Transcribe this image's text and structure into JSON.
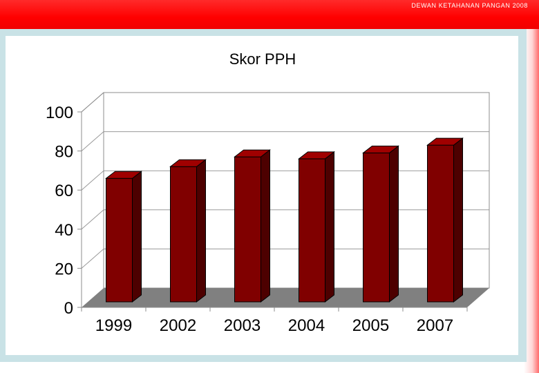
{
  "header": {
    "org_text": "DEWAN KETAHANAN PANGAN 2008"
  },
  "colors": {
    "band": "#ff0000",
    "bar_front": "#800000",
    "bar_top": "#a00000",
    "bar_side": "#4d0000",
    "floor": "#808080"
  },
  "chart_data": {
    "type": "bar",
    "title": "Skor PPH",
    "categories": [
      "1999",
      "2002",
      "2003",
      "2004",
      "2005",
      "2007"
    ],
    "values": [
      66,
      72,
      77,
      76,
      79,
      83
    ],
    "ylim": [
      0,
      100
    ],
    "yticks": [
      "0",
      "20",
      "40",
      "60",
      "80",
      "100"
    ],
    "xlabel": "",
    "ylabel": "",
    "grid": true,
    "legend": "none"
  }
}
